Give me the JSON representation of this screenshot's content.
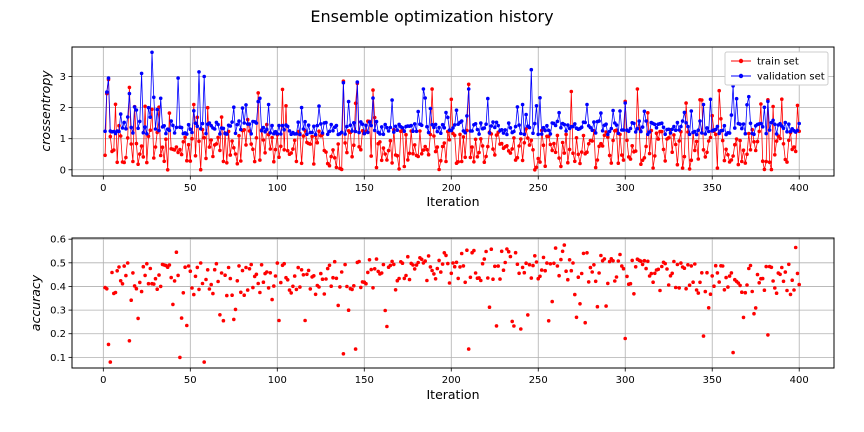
{
  "figure": {
    "title": "Ensemble optimization history"
  },
  "chart_data": [
    {
      "type": "line",
      "xlabel": "Iteration",
      "ylabel": "crossentropy",
      "xlim": [
        -18,
        420
      ],
      "ylim": [
        -0.2,
        3.95
      ],
      "xticks": [
        0,
        50,
        100,
        150,
        200,
        250,
        300,
        350,
        400
      ],
      "yticks": [
        0,
        1,
        2,
        3
      ],
      "grid": true,
      "legend_position": "upper-right",
      "series": [
        {
          "name": "train set",
          "color": "#ff0000",
          "marker": "dot",
          "generator": {
            "base": 0.75,
            "spread": 0.55,
            "spike_every": 7,
            "spike_level": 2.6,
            "seed": 11
          }
        },
        {
          "name": "validation set",
          "color": "#0000ff",
          "marker": "dot",
          "generator": {
            "base": 1.35,
            "spread": 0.22,
            "spike_every": 9,
            "spike_level": 2.4,
            "seed": 23
          }
        }
      ],
      "notable_points": {
        "train set": [
          [
            2,
            2.45
          ],
          [
            3,
            2.9
          ],
          [
            15,
            2.65
          ],
          [
            52,
            2.1
          ],
          [
            138,
            2.85
          ],
          [
            146,
            2.78
          ],
          [
            210,
            2.75
          ],
          [
            300,
            2.2
          ],
          [
            343,
            2.25
          ],
          [
            382,
            2.25
          ]
        ],
        "validation set": [
          [
            2,
            2.5
          ],
          [
            3,
            2.95
          ],
          [
            15,
            2.45
          ],
          [
            22,
            3.1
          ],
          [
            28,
            3.78
          ],
          [
            33,
            2.3
          ],
          [
            43,
            2.95
          ],
          [
            55,
            3.15
          ],
          [
            58,
            3.0
          ],
          [
            90,
            2.3
          ],
          [
            95,
            2.1
          ],
          [
            114,
            2.0
          ],
          [
            138,
            2.8
          ],
          [
            146,
            2.82
          ],
          [
            184,
            2.6
          ],
          [
            210,
            2.6
          ],
          [
            246,
            3.22
          ],
          [
            300,
            2.15
          ],
          [
            345,
            2.1
          ],
          [
            362,
            2.7
          ],
          [
            382,
            2.2
          ]
        ]
      }
    },
    {
      "type": "scatter",
      "xlabel": "Iteration",
      "ylabel": "accuracy",
      "xlim": [
        -18,
        420
      ],
      "ylim": [
        0.055,
        0.605
      ],
      "xticks": [
        0,
        50,
        100,
        150,
        200,
        250,
        300,
        350,
        400
      ],
      "yticks": [
        0.1,
        0.2,
        0.3,
        0.4,
        0.5,
        0.6
      ],
      "grid": true,
      "series": [
        {
          "name": "",
          "color": "#ff0000",
          "marker": "dot",
          "generator": {
            "base": 0.43,
            "spread": 0.07,
            "trend_peak": 0.07,
            "seed": 37
          }
        }
      ],
      "notable_points": [
        [
          2,
          0.39
        ],
        [
          3,
          0.155
        ],
        [
          4,
          0.08
        ],
        [
          15,
          0.17
        ],
        [
          42,
          0.545
        ],
        [
          44,
          0.1
        ],
        [
          48,
          0.235
        ],
        [
          58,
          0.08
        ],
        [
          138,
          0.115
        ],
        [
          145,
          0.135
        ],
        [
          210,
          0.135
        ],
        [
          240,
          0.22
        ],
        [
          265,
          0.575
        ],
        [
          300,
          0.18
        ],
        [
          345,
          0.19
        ],
        [
          362,
          0.12
        ],
        [
          382,
          0.195
        ],
        [
          398,
          0.565
        ]
      ]
    }
  ]
}
